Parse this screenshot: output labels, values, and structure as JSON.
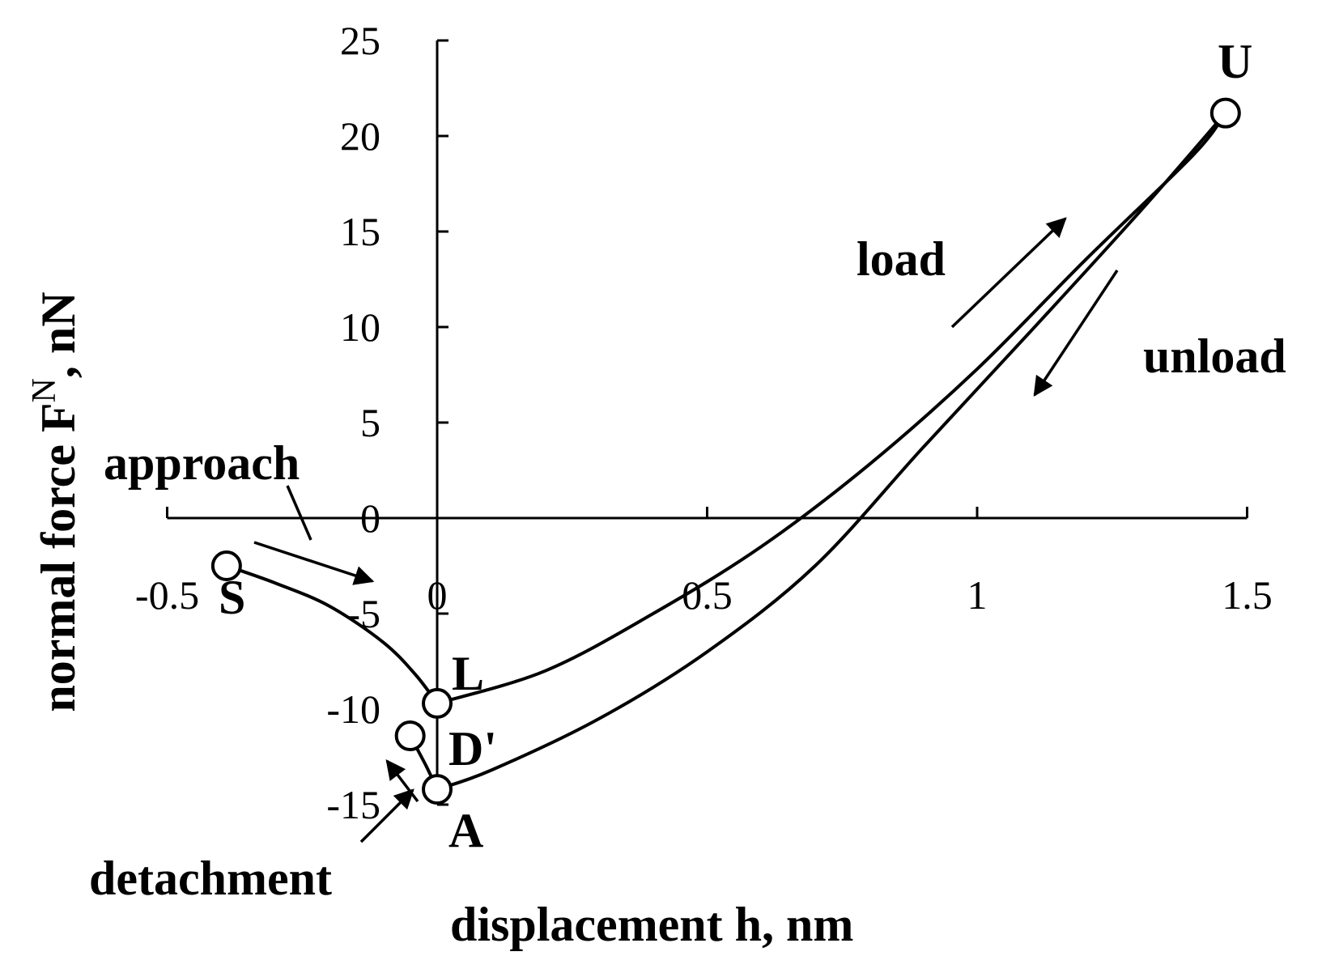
{
  "chart_data": {
    "type": "line",
    "xlabel": "displacement h, nm",
    "ylabel": {
      "main": "normal force F",
      "sup": "N",
      "unit": ", nN"
    },
    "xlim": [
      -0.5,
      1.5
    ],
    "ylim": [
      -15,
      25
    ],
    "x_ticks": [
      "-0.5",
      "0",
      "0.5",
      "1",
      "1.5"
    ],
    "y_ticks": [
      "-15",
      "-10",
      "-5",
      "0",
      "5",
      "10",
      "15",
      "20",
      "25"
    ],
    "grid": false,
    "series": [
      {
        "x": [
          -0.39,
          -0.3,
          -0.2,
          -0.1,
          -0.04,
          0.0
        ],
        "y": [
          -2.5,
          -3.4,
          -4.6,
          -6.5,
          -8.2,
          -9.7
        ]
      },
      {
        "x": [
          0.0,
          0.2,
          0.4,
          0.6,
          0.8,
          1.0,
          1.2,
          1.4,
          1.46
        ],
        "y": [
          -9.7,
          -8.0,
          -5.0,
          -1.5,
          2.8,
          7.8,
          13.5,
          19.0,
          21.2
        ]
      },
      {
        "x": [
          1.46,
          1.3,
          1.1,
          0.9,
          0.7,
          0.5,
          0.3,
          0.1,
          0.0
        ],
        "y": [
          21.2,
          16.0,
          9.8,
          3.7,
          -2.5,
          -7.0,
          -10.5,
          -13.2,
          -14.2
        ]
      },
      {
        "x": [
          0.0,
          -0.02,
          -0.05
        ],
        "y": [
          -14.2,
          -13.0,
          -11.4
        ]
      }
    ],
    "points": [
      {
        "label": "S",
        "x": -0.39,
        "y": -2.5
      },
      {
        "label": "L",
        "x": 0.0,
        "y": -9.7
      },
      {
        "label": "D'",
        "x": -0.05,
        "y": -11.4
      },
      {
        "label": "A",
        "x": 0.0,
        "y": -14.2
      },
      {
        "label": "U",
        "x": 1.46,
        "y": 21.2
      }
    ],
    "annotations": [
      "approach",
      "load",
      "unload",
      "detachment"
    ]
  }
}
